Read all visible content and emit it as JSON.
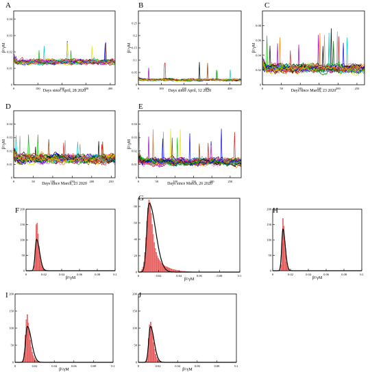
{
  "figure": {
    "colors": {
      "ts": [
        "#000000",
        "#e41a1c",
        "#00c000",
        "#0000ff",
        "#e6e600",
        "#ff7f00",
        "#9900cc",
        "#00cccc",
        "#ff66cc",
        "#804000",
        "#999999",
        "#006600"
      ],
      "bar_fill": "#f08080",
      "bar_stroke": "#d03030",
      "fit": "#000000"
    }
  },
  "chart_data": [
    {
      "id": "A",
      "type": "line",
      "letter": "A",
      "xlabel": "Days since April, 28 2020",
      "ylabel": "β²/γM",
      "xlim": [
        0,
        420
      ],
      "ylim": [
        0,
        0.045
      ],
      "xticks": [
        0,
        100,
        200,
        300,
        400
      ],
      "xtick_labels": [
        "0",
        "100",
        "200",
        "300",
        "400"
      ],
      "yticks": [
        0,
        0.01,
        0.02,
        0.03,
        0.04
      ],
      "ytick_labels": [
        "0",
        "0.01",
        "0.02",
        "0.03",
        "0.04"
      ],
      "n_series": 22,
      "baseline": 0.014,
      "noise": 0.0015,
      "spikes": 4,
      "spike_amp": 0.012
    },
    {
      "id": "B",
      "type": "line",
      "letter": "B",
      "xlabel": "Days since April, 12 2020",
      "ylabel": "β²/γM",
      "xlim": [
        0,
        450
      ],
      "ylim": [
        0,
        0.3
      ],
      "xticks": [
        0,
        100,
        200,
        300,
        400
      ],
      "xtick_labels": [
        "0",
        "100",
        "200",
        "300",
        "400"
      ],
      "yticks": [
        0,
        0.05,
        0.1,
        0.15,
        0.2,
        0.25
      ],
      "ytick_labels": [
        "0",
        "0.05",
        "0.1",
        "0.15",
        "0.2",
        "0.25"
      ],
      "n_series": 18,
      "baseline": 0.02,
      "noise": 0.004,
      "spikes": 6,
      "spike_amp": 0.08
    },
    {
      "id": "C",
      "type": "line",
      "letter": "C",
      "xlabel": "Days since March, 23 2020",
      "ylabel": "β²/γM",
      "xlim": [
        0,
        270
      ],
      "ylim": [
        0,
        0.1
      ],
      "xticks": [
        0,
        50,
        100,
        150,
        200,
        250
      ],
      "xtick_labels": [
        "0",
        "50",
        "100",
        "150",
        "200",
        "250"
      ],
      "yticks": [
        0,
        0.02,
        0.04,
        0.06,
        0.08
      ],
      "ytick_labels": [
        "0",
        "0.02",
        "0.04",
        "0.06",
        "0.08"
      ],
      "n_series": 30,
      "baseline": 0.022,
      "noise": 0.005,
      "spikes": 14,
      "spike_amp": 0.05
    },
    {
      "id": "D",
      "type": "line",
      "letter": "D",
      "xlabel": "Days since March, 23 2020",
      "ylabel": "β²/γM",
      "xlim": [
        0,
        260
      ],
      "ylim": [
        0,
        0.05
      ],
      "xticks": [
        0,
        50,
        100,
        150,
        200,
        250
      ],
      "xtick_labels": [
        "0",
        "50",
        "100",
        "150",
        "200",
        "250"
      ],
      "yticks": [
        0,
        0.01,
        0.02,
        0.03,
        0.04
      ],
      "ytick_labels": [
        "0",
        "0.01",
        "0.02",
        "0.03",
        "0.04"
      ],
      "n_series": 30,
      "baseline": 0.014,
      "noise": 0.003,
      "spikes": 10,
      "spike_amp": 0.018
    },
    {
      "id": "E",
      "type": "line",
      "letter": "E",
      "xlabel": "Days since March, 26 2020",
      "ylabel": "β²/γM",
      "xlim": [
        0,
        280
      ],
      "ylim": [
        0,
        0.05
      ],
      "xticks": [
        0,
        50,
        100,
        150,
        200,
        250
      ],
      "xtick_labels": [
        "0",
        "50",
        "100",
        "150",
        "200",
        "250"
      ],
      "yticks": [
        0,
        0.01,
        0.02,
        0.03,
        0.04
      ],
      "ytick_labels": [
        "0",
        "0.01",
        "0.02",
        "0.03",
        "0.04"
      ],
      "n_series": 28,
      "baseline": 0.012,
      "noise": 0.0025,
      "spikes": 10,
      "spike_amp": 0.025
    },
    {
      "id": "F",
      "type": "bar",
      "letter": "F",
      "xlabel": "β²/γM",
      "ylabel": "",
      "xlim": [
        0,
        0.1
      ],
      "ylim": [
        0,
        200
      ],
      "xticks": [
        0,
        0.02,
        0.04,
        0.06,
        0.08,
        0.1
      ],
      "xtick_labels": [
        "0",
        "0.02",
        "0.04",
        "0.06",
        "0.08",
        "0.1"
      ],
      "yticks": [
        0,
        50,
        100,
        150,
        200
      ],
      "ytick_labels": [
        "0",
        "50",
        "100",
        "150",
        "200"
      ],
      "bin_width": 0.001,
      "values": [
        0,
        0,
        0,
        0,
        0,
        0,
        0,
        0,
        2,
        18,
        70,
        150,
        155,
        120,
        80,
        50,
        32,
        20,
        12,
        8,
        5,
        3,
        2,
        1,
        1,
        0
      ],
      "fit_peak": 0.0118,
      "fit_height": 102,
      "fit_sigma_left": 0.0016,
      "fit_sigma_right": 0.0034
    },
    {
      "id": "G",
      "type": "bar",
      "letter": "G",
      "xlabel": "β²/γM",
      "ylabel": "",
      "xlim": [
        0,
        0.1
      ],
      "ylim": [
        0,
        90
      ],
      "xticks": [
        0,
        0.02,
        0.04,
        0.06,
        0.08,
        0.1
      ],
      "xtick_labels": [
        "0",
        "0.02",
        "0.04",
        "0.06",
        "0.08",
        "0.1"
      ],
      "yticks": [
        0,
        20,
        40,
        60,
        80
      ],
      "ytick_labels": [
        "0",
        "20",
        "40",
        "60",
        "80"
      ],
      "bin_width": 0.001,
      "values": [
        0,
        0,
        1,
        3,
        6,
        12,
        24,
        42,
        62,
        78,
        88,
        85,
        72,
        58,
        46,
        36,
        29,
        24,
        20,
        17,
        15,
        13,
        11,
        10,
        9,
        8,
        7,
        6.5,
        6,
        5.5,
        5,
        4.5,
        4,
        3.5,
        3,
        3,
        2.5,
        2.5,
        2,
        2,
        1.5,
        1.5,
        1,
        1,
        1,
        1,
        0.8,
        0.8,
        0.6,
        0.6,
        0.5,
        0.4,
        0.4,
        0.3,
        0.3,
        0.2,
        0.2,
        0.2,
        0.1,
        0.1,
        0.1
      ],
      "fit_peak": 0.0105,
      "fit_height": 84,
      "fit_sigma_left": 0.0022,
      "fit_sigma_right": 0.0065
    },
    {
      "id": "H",
      "type": "bar",
      "letter": "H",
      "xlabel": "β²/γM",
      "ylabel": "",
      "xlim": [
        0,
        0.1
      ],
      "ylim": [
        0,
        200
      ],
      "xticks": [
        0,
        0.02,
        0.04,
        0.06,
        0.08,
        0.1
      ],
      "xtick_labels": [
        "0",
        "0.02",
        "0.04",
        "0.06",
        "0.08",
        "0.1"
      ],
      "yticks": [
        0,
        50,
        100,
        150,
        200
      ],
      "ytick_labels": [
        "0",
        "50",
        "100",
        "150",
        "200"
      ],
      "bin_width": 0.001,
      "values": [
        0,
        0,
        0,
        0,
        0,
        0,
        0,
        0,
        2,
        20,
        90,
        170,
        145,
        95,
        55,
        28,
        14,
        7,
        3,
        1,
        0
      ],
      "fit_peak": 0.0115,
      "fit_height": 135,
      "fit_sigma_left": 0.0014,
      "fit_sigma_right": 0.0026
    },
    {
      "id": "I",
      "type": "bar",
      "letter": "I",
      "xlabel": "β²/γM",
      "ylabel": "",
      "xlim": [
        0,
        0.1
      ],
      "ylim": [
        0,
        200
      ],
      "xticks": [
        0,
        0.02,
        0.04,
        0.06,
        0.08,
        0.1
      ],
      "xtick_labels": [
        "0",
        "0.02",
        "0.04",
        "0.06",
        "0.08",
        "0.1"
      ],
      "yticks": [
        0,
        50,
        100,
        150,
        200
      ],
      "ytick_labels": [
        "0",
        "50",
        "100",
        "150",
        "200"
      ],
      "bin_width": 0.001,
      "values": [
        0,
        0,
        0,
        0,
        0,
        0,
        0,
        0,
        5,
        28,
        80,
        125,
        140,
        115,
        90,
        65,
        45,
        30,
        20,
        13,
        8,
        5,
        3,
        2,
        1,
        1,
        0
      ],
      "fit_peak": 0.0125,
      "fit_height": 105,
      "fit_sigma_left": 0.0018,
      "fit_sigma_right": 0.0042
    },
    {
      "id": "J",
      "type": "bar",
      "letter": "J",
      "xlabel": "β²/γM",
      "ylabel": "",
      "xlim": [
        0,
        0.1
      ],
      "ylim": [
        0,
        200
      ],
      "xticks": [
        0,
        0.02,
        0.04,
        0.06,
        0.08,
        0.1
      ],
      "xtick_labels": [
        "0",
        "0.02",
        "0.04",
        "0.06",
        "0.08",
        "0.1"
      ],
      "yticks": [
        0,
        50,
        100,
        150,
        200
      ],
      "ytick_labels": [
        "0",
        "50",
        "100",
        "150",
        "200"
      ],
      "bin_width": 0.001,
      "values": [
        0,
        0,
        0,
        0,
        0,
        0,
        0,
        0,
        3,
        22,
        70,
        110,
        118,
        105,
        82,
        58,
        38,
        24,
        15,
        9,
        5,
        3,
        2,
        1,
        0
      ],
      "fit_peak": 0.0122,
      "fit_height": 105,
      "fit_sigma_left": 0.0017,
      "fit_sigma_right": 0.0038
    }
  ]
}
